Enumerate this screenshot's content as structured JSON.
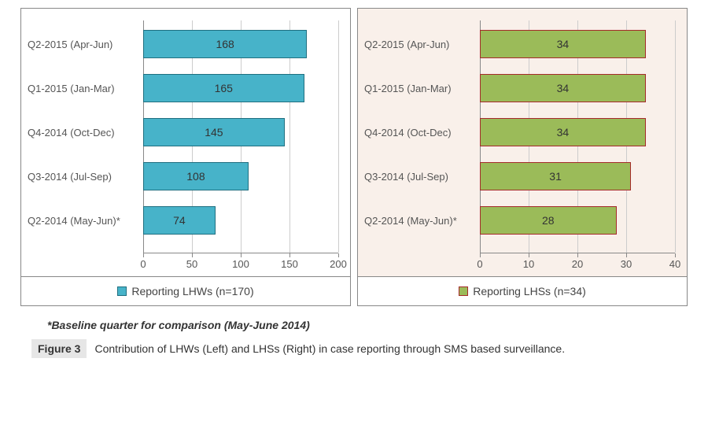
{
  "footnote": "*Baseline quarter for comparison (May-June 2014)",
  "figure_label": "Figure 3",
  "figure_caption": "Contribution of LHWs (Left) and LHSs (Right) in case reporting through SMS based surveillance.",
  "left_chart": {
    "type": "bar-horizontal",
    "legend": "Reporting LHWs (n=170)",
    "bar_fill": "#47b3c9",
    "bar_border": "#1f6f80",
    "panel_bg": "#ffffff",
    "label_fontsize": 13,
    "value_fontsize": 14,
    "xlim": [
      0,
      200
    ],
    "xticks": [
      0,
      50,
      100,
      150,
      200
    ],
    "categories": [
      "Q2-2015 (Apr-Jun)",
      "Q1-2015 (Jan-Mar)",
      "Q4-2014 (Oct-Dec)",
      "Q3-2014 (Jul-Sep)",
      "Q2-2014 (May-Jun)*"
    ],
    "values": [
      168,
      165,
      145,
      108,
      74
    ]
  },
  "right_chart": {
    "type": "bar-horizontal",
    "legend": "Reporting LHSs (n=34)",
    "bar_fill": "#9bbb59",
    "bar_border": "#a52a2a",
    "panel_bg": "#f9f0ea",
    "label_fontsize": 13,
    "value_fontsize": 14,
    "xlim": [
      0,
      40
    ],
    "xticks": [
      0,
      10,
      20,
      30,
      40
    ],
    "categories": [
      "Q2-2015 (Apr-Jun)",
      "Q1-2015 (Jan-Mar)",
      "Q4-2014 (Oct-Dec)",
      "Q3-2014 (Jul-Sep)",
      "Q2-2014 (May-Jun)*"
    ],
    "values": [
      34,
      34,
      34,
      31,
      28
    ]
  }
}
